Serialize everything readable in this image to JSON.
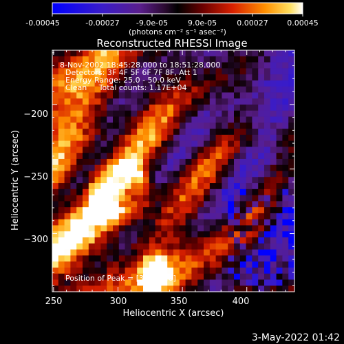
{
  "colorbar": {
    "ticks": [
      "-0.00045",
      "-0.00027",
      "-9.0e-05",
      "9.0e-05",
      "0.00027",
      "0.00045"
    ],
    "unit_label": "(photons cm⁻² s⁻¹ asec⁻²)",
    "vmin": -0.00045,
    "vmax": 0.00045
  },
  "chart_data": {
    "type": "heatmap",
    "title": "Reconstructed RHESSI Image",
    "xlabel": "Heliocentric X (arcsec)",
    "ylabel": "Heliocentric Y (arcsec)",
    "xlim": [
      249,
      437
    ],
    "ylim": [
      -345,
      -158
    ],
    "x_ticks": [
      250,
      300,
      350,
      400
    ],
    "y_ticks": [
      -200,
      -250,
      -300
    ],
    "x_tick_labels": [
      "250",
      "300",
      "350",
      "400"
    ],
    "y_tick_labels": [
      "−200",
      "−250",
      "−300"
    ],
    "annotations": [
      "8-Nov-2002 18:45:28.000 to 18:51:28.000",
      "Detectors: 3F 4F 5F 6F 7F 8F, Att 1",
      "Energy Range: 25.0 - 50.0 keV",
      "Clean     Total counts: 1.17E+04"
    ],
    "peak_label": "Position of Peak = [326,-326]",
    "peak": [
      326,
      -326
    ],
    "colormap": "blue-purple-red-orange-yellow-white"
  },
  "footer": {
    "timestamp": "3-May-2022 01:42"
  }
}
